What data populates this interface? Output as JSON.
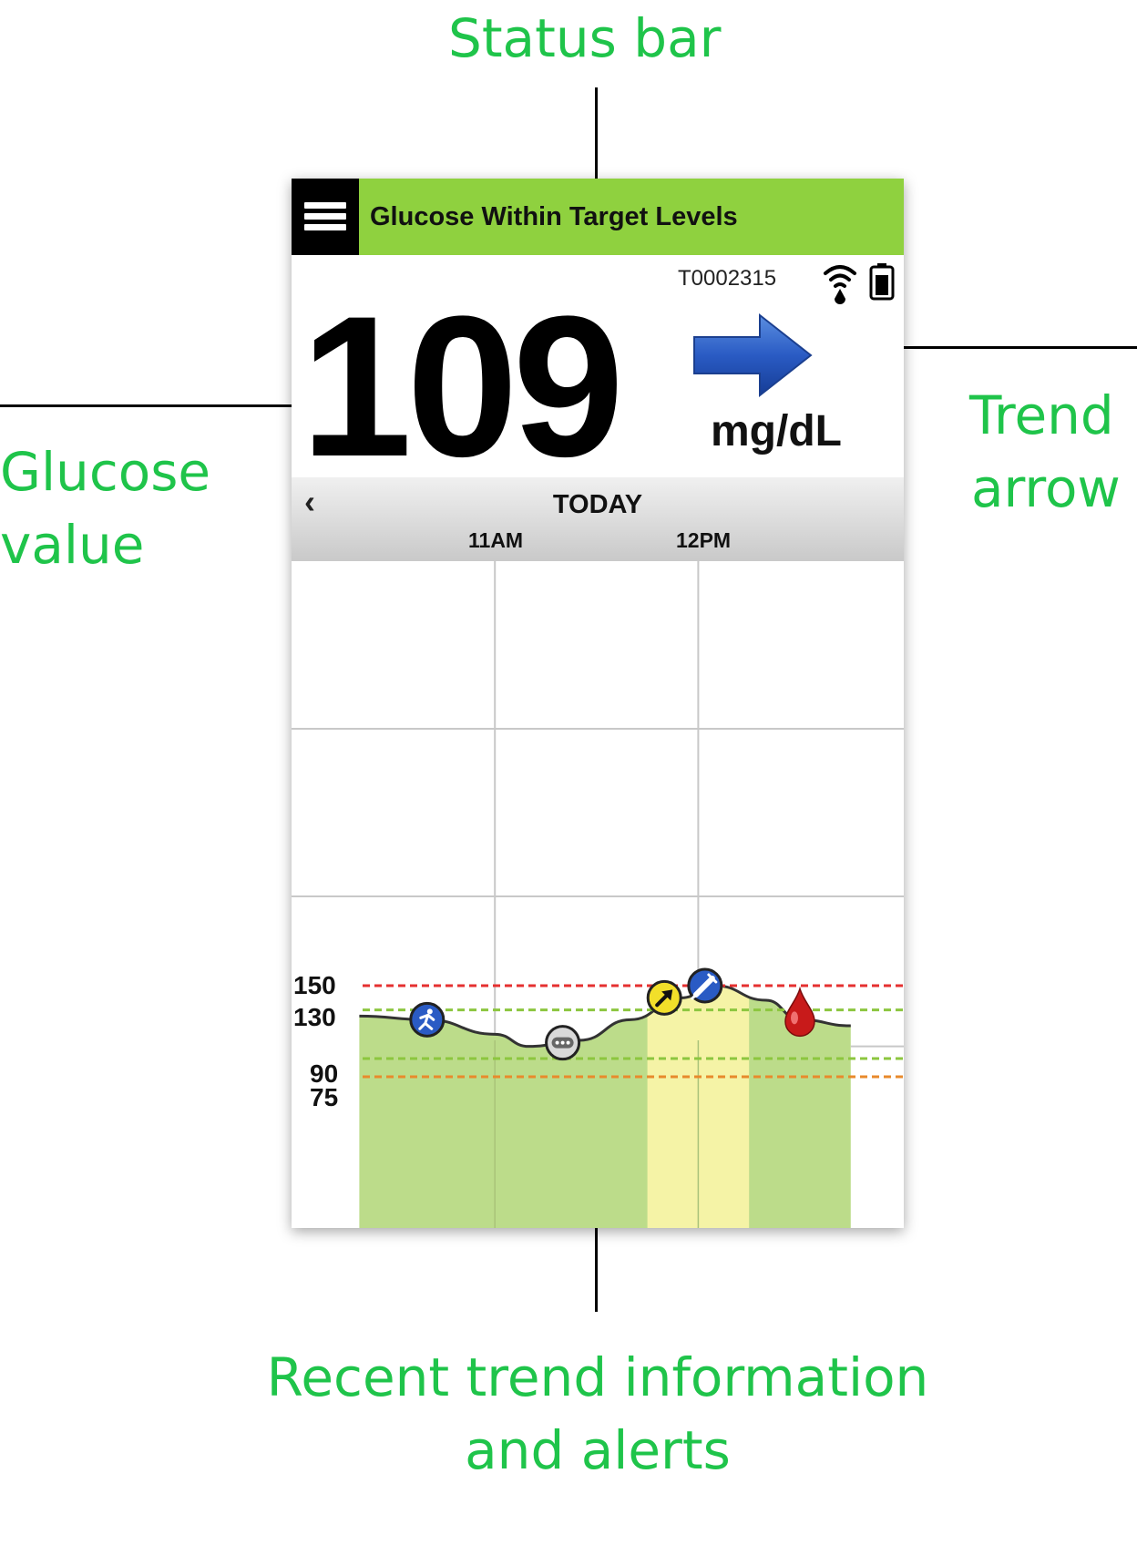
{
  "callouts": {
    "status_bar": "Status bar",
    "glucose_value_line1": "Glucose",
    "glucose_value_line2": "value",
    "trend_arrow_line1": "Trend",
    "trend_arrow_line2": "arrow",
    "recent_trend_line1": "Recent trend information",
    "recent_trend_line2": "and alerts"
  },
  "colors": {
    "callout_text": "#1fc44a",
    "status_bar": "#8fd13f",
    "in_range_fill": "#bcdc8a",
    "high_fill": "#f5f3a6",
    "high_threshold": "#e53030",
    "target_threshold": "#8cc63f"
  },
  "app": {
    "status_message": "Glucose Within Target Levels",
    "device_id": "T0002315",
    "glucose_value": "109",
    "units": "mg/dL",
    "trend": "steady",
    "icons": [
      "menu-icon",
      "signal-icon",
      "battery-icon",
      "trend-arrow-icon",
      "back-chevron-icon"
    ]
  },
  "chart_header": {
    "back_label": "‹",
    "day": "TODAY",
    "times": [
      "11AM",
      "12PM"
    ]
  },
  "chart_data": {
    "type": "area",
    "x_unit": "time of day",
    "y_unit": "mg/dL",
    "threshold_labels": [
      "150",
      "130",
      "90",
      "75"
    ],
    "thresholds": [
      {
        "value": 150,
        "kind": "high alert",
        "color": "#e53030"
      },
      {
        "value": 130,
        "kind": "target high",
        "color": "#8cc63f"
      },
      {
        "value": 90,
        "kind": "target low",
        "color": "#8cc63f"
      },
      {
        "value": 75,
        "kind": "low alert",
        "color": "#e88a2c"
      }
    ],
    "ylim": [
      0,
      400
    ],
    "x": [
      "10:15",
      "10:35",
      "10:55",
      "11:05",
      "11:20",
      "11:35",
      "11:50",
      "12:00",
      "12:15",
      "12:25",
      "12:40"
    ],
    "values": [
      125,
      122,
      110,
      100,
      105,
      122,
      140,
      150,
      138,
      122,
      117
    ],
    "events": [
      {
        "time": "10:35",
        "value": 122,
        "type": "exercise",
        "icon": "runner-icon"
      },
      {
        "time": "11:15",
        "value": 103,
        "type": "other",
        "icon": "ellipsis-icon"
      },
      {
        "time": "11:45",
        "value": 140,
        "type": "high-glucose alert",
        "icon": "rising-arrow-icon"
      },
      {
        "time": "11:57",
        "value": 150,
        "type": "insulin",
        "icon": "syringe-icon"
      },
      {
        "time": "12:25",
        "value": 122,
        "type": "blood glucose",
        "icon": "blood-drop-icon"
      }
    ],
    "highlight_window": [
      "11:40",
      "12:10"
    ]
  }
}
